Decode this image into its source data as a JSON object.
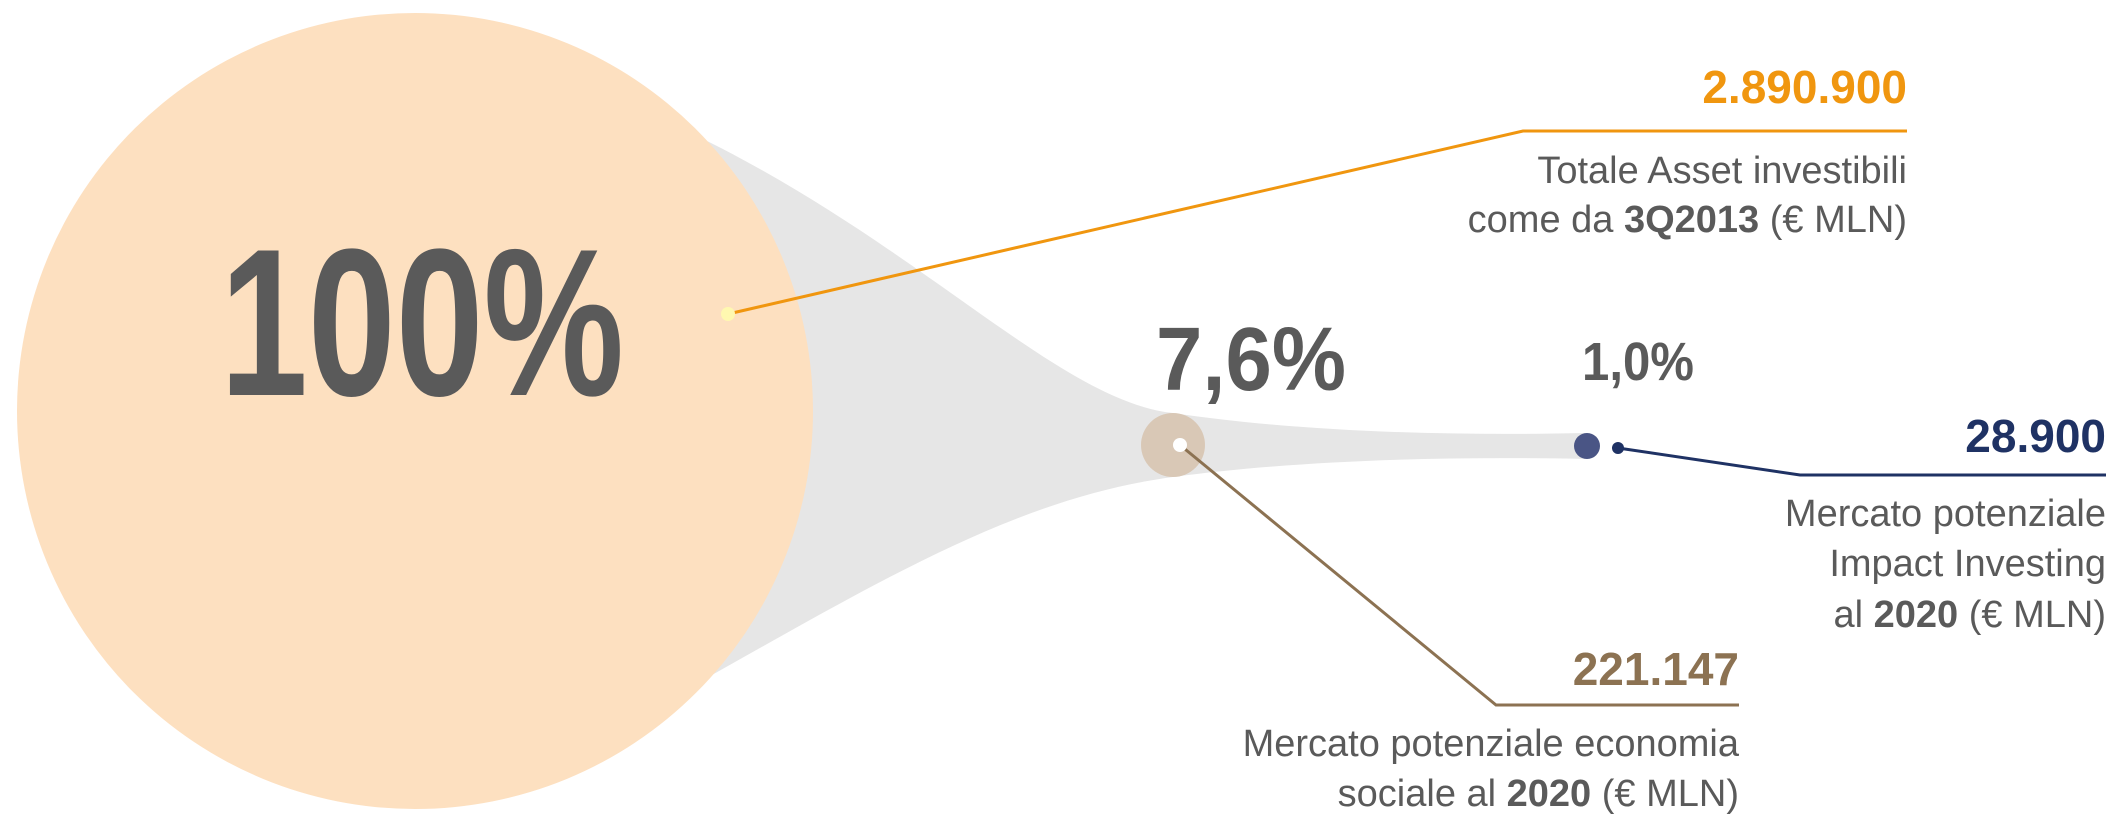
{
  "items": [
    {
      "percent": "100%",
      "value": "2.890.900",
      "color": "#f0960f",
      "label_lines": [
        [
          {
            "text": "Totale Asset investibili"
          }
        ],
        [
          {
            "text": "come da "
          },
          {
            "text": "3Q2013",
            "bold": true
          },
          {
            "text": " (€ MLN)"
          }
        ]
      ]
    },
    {
      "percent": "7,6%",
      "value": "221.147",
      "color": "#8c7252",
      "label_lines": [
        [
          {
            "text": "Mercato potenziale economia"
          }
        ],
        [
          {
            "text": "sociale al "
          },
          {
            "text": "2020",
            "bold": true
          },
          {
            "text": " (€ MLN)"
          }
        ]
      ]
    },
    {
      "percent": "1,0%",
      "value": "28.900",
      "color": "#1f3264",
      "label_lines": [
        [
          {
            "text": "Mercato potenziale"
          }
        ],
        [
          {
            "text": "Impact Investing"
          }
        ],
        [
          {
            "text": "al "
          },
          {
            "text": "2020",
            "bold": true
          },
          {
            "text": " (€ MLN)"
          }
        ]
      ]
    }
  ]
}
